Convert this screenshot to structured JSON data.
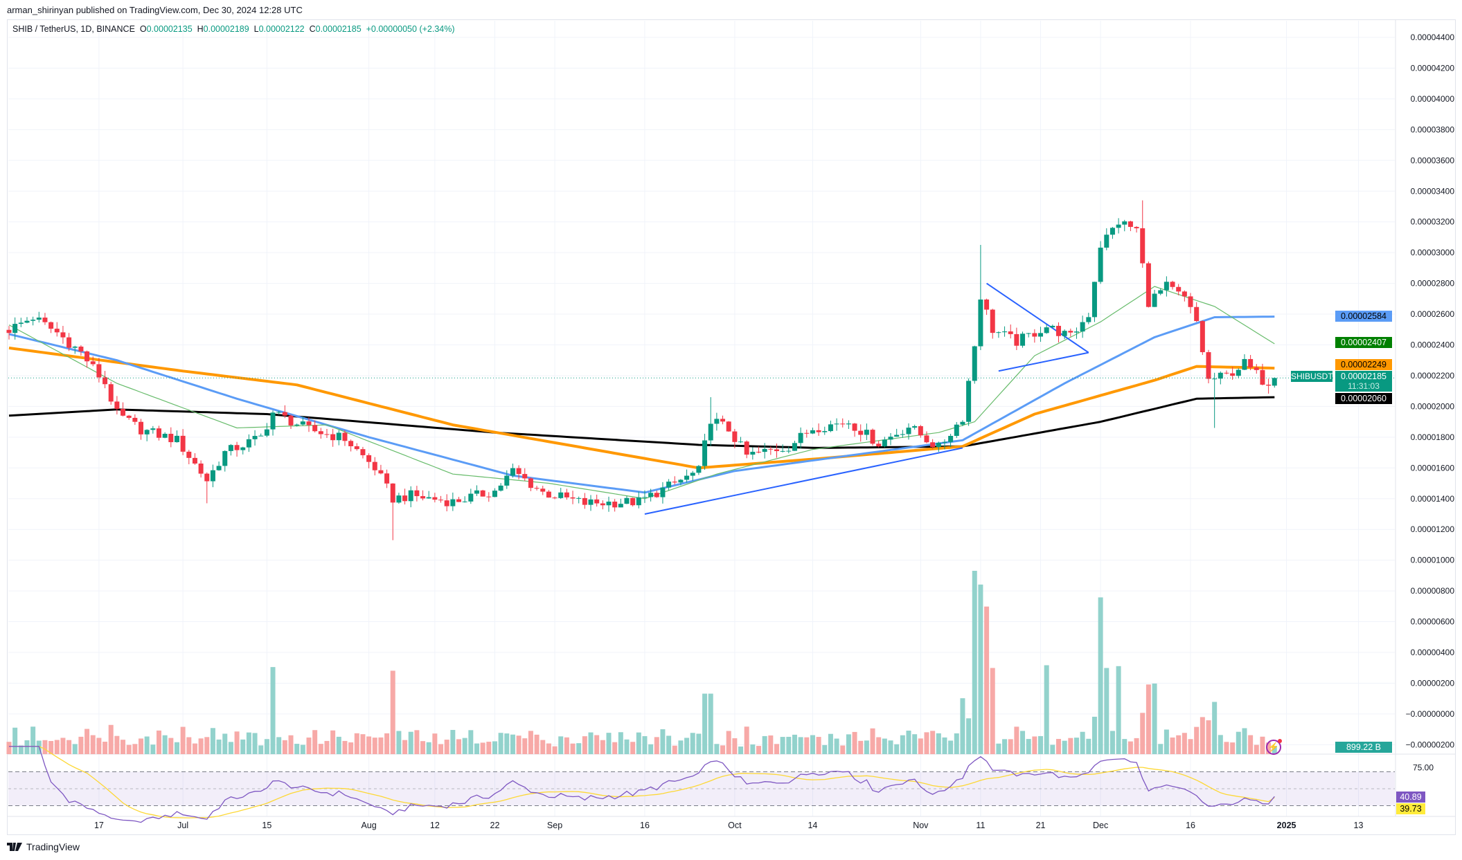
{
  "publisher": "arman_shirinyan published on TradingView.com, Dec 30, 2024 12:28 UTC",
  "legend": {
    "symbol": "SHIB / TetherUS, 1D, BINANCE",
    "o_label": "O",
    "o": "0.00002135",
    "h_label": "H",
    "h": "0.00002189",
    "l_label": "L",
    "l": "0.00002122",
    "c_label": "C",
    "c": "0.00002185",
    "change": "+0.00000050 (+2.34%)"
  },
  "price_tags": {
    "ma50": "0.00002584",
    "ma20": "0.00002407",
    "ma100": "0.00002249",
    "symbol": "SHIBUSDT",
    "last": "0.00002185",
    "countdown": "11:31:03",
    "ma200": "0.00002060",
    "volume": "899.22 B",
    "rsi": "40.89",
    "rsi_ma": "39.73"
  },
  "footer": {
    "brand": "TradingView"
  },
  "colors": {
    "up": "#089981",
    "down": "#f23645",
    "ma20": "#66bb6a",
    "ma50": "#5b9cf6",
    "ma100": "#ff9800",
    "ma200": "#000000",
    "rsi": "#7e57c2",
    "rsi_ma": "#fdd835",
    "trendline": "#2962ff"
  },
  "chart_data": {
    "type": "candlestick",
    "symbol": "SHIBUSDT",
    "interval": "1D",
    "start_date": "2024-06-02",
    "end_date": "2024-12-30",
    "price_unit": "1e-8 USDT",
    "y_axis_labels": [
      "0.00004400",
      "0.00004200",
      "0.00004000",
      "0.00003800",
      "0.00003600",
      "0.00003400",
      "0.00003200",
      "0.00003000",
      "0.00002800",
      "0.00002600",
      "0.00002400",
      "0.00002200",
      "0.00002000",
      "0.00001800",
      "0.00001600",
      "0.00001400",
      "0.00001200",
      "0.00001000",
      "0.00000800",
      "0.00000600",
      "0.00000400",
      "0.00000200",
      "−0.00000000",
      "−0.00000200"
    ],
    "x_axis_labels": [
      {
        "date": "2024-06-17",
        "label": "17"
      },
      {
        "date": "2024-07-01",
        "label": "Jul"
      },
      {
        "date": "2024-07-15",
        "label": "15"
      },
      {
        "date": "2024-08-01",
        "label": "Aug"
      },
      {
        "date": "2024-08-12",
        "label": "12"
      },
      {
        "date": "2024-08-22",
        "label": "22"
      },
      {
        "date": "2024-09-01",
        "label": "Sep"
      },
      {
        "date": "2024-09-16",
        "label": "16"
      },
      {
        "date": "2024-10-01",
        "label": "Oct"
      },
      {
        "date": "2024-10-14",
        "label": "14"
      },
      {
        "date": "2024-11-01",
        "label": "Nov"
      },
      {
        "date": "2024-11-11",
        "label": "11"
      },
      {
        "date": "2024-11-21",
        "label": "21"
      },
      {
        "date": "2024-12-01",
        "label": "Dec"
      },
      {
        "date": "2024-12-16",
        "label": "16"
      },
      {
        "date": "2025-01-01",
        "label": "2025"
      },
      {
        "date": "2025-01-13",
        "label": "13"
      }
    ],
    "close_anchors": [
      [
        "2024-06-02",
        2500
      ],
      [
        "2024-06-06",
        2580
      ],
      [
        "2024-06-10",
        2480
      ],
      [
        "2024-06-14",
        2350
      ],
      [
        "2024-06-18",
        2150
      ],
      [
        "2024-06-20",
        1950
      ],
      [
        "2024-06-24",
        1850
      ],
      [
        "2024-06-30",
        1780
      ],
      [
        "2024-07-05",
        1520
      ],
      [
        "2024-07-08",
        1700
      ],
      [
        "2024-07-14",
        1800
      ],
      [
        "2024-07-16",
        1960
      ],
      [
        "2024-07-22",
        1850
      ],
      [
        "2024-07-28",
        1790
      ],
      [
        "2024-08-02",
        1600
      ],
      [
        "2024-08-05",
        1400
      ],
      [
        "2024-08-08",
        1420
      ],
      [
        "2024-08-15",
        1380
      ],
      [
        "2024-08-22",
        1450
      ],
      [
        "2024-08-25",
        1580
      ],
      [
        "2024-08-30",
        1440
      ],
      [
        "2024-09-06",
        1370
      ],
      [
        "2024-09-15",
        1380
      ],
      [
        "2024-09-20",
        1480
      ],
      [
        "2024-09-25",
        1580
      ],
      [
        "2024-09-27",
        1920
      ],
      [
        "2024-09-30",
        1850
      ],
      [
        "2024-10-03",
        1680
      ],
      [
        "2024-10-10",
        1740
      ],
      [
        "2024-10-14",
        1860
      ],
      [
        "2024-10-20",
        1900
      ],
      [
        "2024-10-25",
        1760
      ],
      [
        "2024-10-30",
        1870
      ],
      [
        "2024-11-04",
        1730
      ],
      [
        "2024-11-08",
        1930
      ],
      [
        "2024-11-10",
        2400
      ],
      [
        "2024-11-11",
        2720
      ],
      [
        "2024-11-13",
        2500
      ],
      [
        "2024-11-17",
        2420
      ],
      [
        "2024-11-22",
        2520
      ],
      [
        "2024-11-26",
        2450
      ],
      [
        "2024-11-29",
        2600
      ],
      [
        "2024-12-01",
        3050
      ],
      [
        "2024-12-04",
        3200
      ],
      [
        "2024-12-07",
        3150
      ],
      [
        "2024-12-09",
        2680
      ],
      [
        "2024-12-12",
        2780
      ],
      [
        "2024-12-15",
        2700
      ],
      [
        "2024-12-17",
        2550
      ],
      [
        "2024-12-19",
        2170
      ],
      [
        "2024-12-22",
        2200
      ],
      [
        "2024-12-25",
        2280
      ],
      [
        "2024-12-29",
        2135
      ],
      [
        "2024-12-30",
        2185
      ]
    ],
    "last_candle": {
      "open": 2135,
      "high": 2189,
      "low": 2122,
      "close": 2185
    },
    "wick_extremes": [
      {
        "date": "2024-07-05",
        "low": 1370
      },
      {
        "date": "2024-08-05",
        "low": 1130
      },
      {
        "date": "2024-09-27",
        "high": 2060
      },
      {
        "date": "2024-11-11",
        "high": 3050
      },
      {
        "date": "2024-12-08",
        "high": 3340
      },
      {
        "date": "2024-12-20",
        "low": 1860
      }
    ],
    "moving_averages": [
      {
        "name": "MA200",
        "color": "#000000",
        "anchors": [
          [
            "2024-06-02",
            1940
          ],
          [
            "2024-06-20",
            1980
          ],
          [
            "2024-07-15",
            1950
          ],
          [
            "2024-08-22",
            1830
          ],
          [
            "2024-09-25",
            1750
          ],
          [
            "2024-10-15",
            1730
          ],
          [
            "2024-11-08",
            1740
          ],
          [
            "2024-12-01",
            1900
          ],
          [
            "2024-12-17",
            2050
          ],
          [
            "2024-12-30",
            2060
          ]
        ]
      },
      {
        "name": "MA100",
        "color": "#ff9800",
        "anchors": [
          [
            "2024-06-02",
            2380
          ],
          [
            "2024-07-01",
            2230
          ],
          [
            "2024-07-20",
            2140
          ],
          [
            "2024-08-15",
            1880
          ],
          [
            "2024-09-25",
            1600
          ],
          [
            "2024-10-15",
            1660
          ],
          [
            "2024-11-08",
            1740
          ],
          [
            "2024-11-20",
            1950
          ],
          [
            "2024-12-10",
            2170
          ],
          [
            "2024-12-17",
            2260
          ],
          [
            "2024-12-30",
            2249
          ]
        ]
      },
      {
        "name": "MA50",
        "color": "#5b9cf6",
        "anchors": [
          [
            "2024-06-02",
            2470
          ],
          [
            "2024-06-20",
            2300
          ],
          [
            "2024-07-10",
            2050
          ],
          [
            "2024-08-01",
            1800
          ],
          [
            "2024-08-25",
            1550
          ],
          [
            "2024-09-16",
            1440
          ],
          [
            "2024-10-01",
            1580
          ],
          [
            "2024-11-08",
            1780
          ],
          [
            "2024-11-25",
            2150
          ],
          [
            "2024-12-10",
            2450
          ],
          [
            "2024-12-20",
            2580
          ],
          [
            "2024-12-30",
            2584
          ]
        ]
      },
      {
        "name": "MA20",
        "color": "#66bb6a",
        "anchors": [
          [
            "2024-06-02",
            2530
          ],
          [
            "2024-06-20",
            2150
          ],
          [
            "2024-07-10",
            1860
          ],
          [
            "2024-07-25",
            1880
          ],
          [
            "2024-08-15",
            1560
          ],
          [
            "2024-08-31",
            1500
          ],
          [
            "2024-09-16",
            1400
          ],
          [
            "2024-09-28",
            1560
          ],
          [
            "2024-10-14",
            1720
          ],
          [
            "2024-11-04",
            1830
          ],
          [
            "2024-11-10",
            1900
          ],
          [
            "2024-11-20",
            2330
          ],
          [
            "2024-12-01",
            2550
          ],
          [
            "2024-12-10",
            2780
          ],
          [
            "2024-12-20",
            2650
          ],
          [
            "2024-12-30",
            2407
          ]
        ]
      }
    ],
    "trendlines": [
      {
        "from": [
          "2024-09-16",
          1300
        ],
        "to": [
          "2024-11-08",
          1730
        ]
      },
      {
        "from": [
          "2024-11-12",
          2800
        ],
        "to": [
          "2024-11-29",
          2350
        ]
      },
      {
        "from": [
          "2024-11-14",
          2230
        ],
        "to": [
          "2024-11-29",
          2350
        ]
      }
    ],
    "volume_unit": "B",
    "volume_last": 899.22,
    "volume_spikes": [
      [
        "2024-06-06",
        3000
      ],
      [
        "2024-07-16",
        9500
      ],
      [
        "2024-08-05",
        9100
      ],
      [
        "2024-09-26",
        6600
      ],
      [
        "2024-09-27",
        6600
      ],
      [
        "2024-11-08",
        6100
      ],
      [
        "2024-11-10",
        20000
      ],
      [
        "2024-11-11",
        18500
      ],
      [
        "2024-11-12",
        16100
      ],
      [
        "2024-11-13",
        9400
      ],
      [
        "2024-11-22",
        9700
      ],
      [
        "2024-12-01",
        17100
      ],
      [
        "2024-12-02",
        9400
      ],
      [
        "2024-12-04",
        9600
      ],
      [
        "2024-12-09",
        7600
      ],
      [
        "2024-12-10",
        7700
      ],
      [
        "2024-12-20",
        5700
      ]
    ],
    "rsi": {
      "period": 14,
      "upper": 70,
      "middle": 50,
      "lower": 30,
      "axis_label": "75.00",
      "last": 40.89,
      "ma_last": 39.73
    }
  }
}
